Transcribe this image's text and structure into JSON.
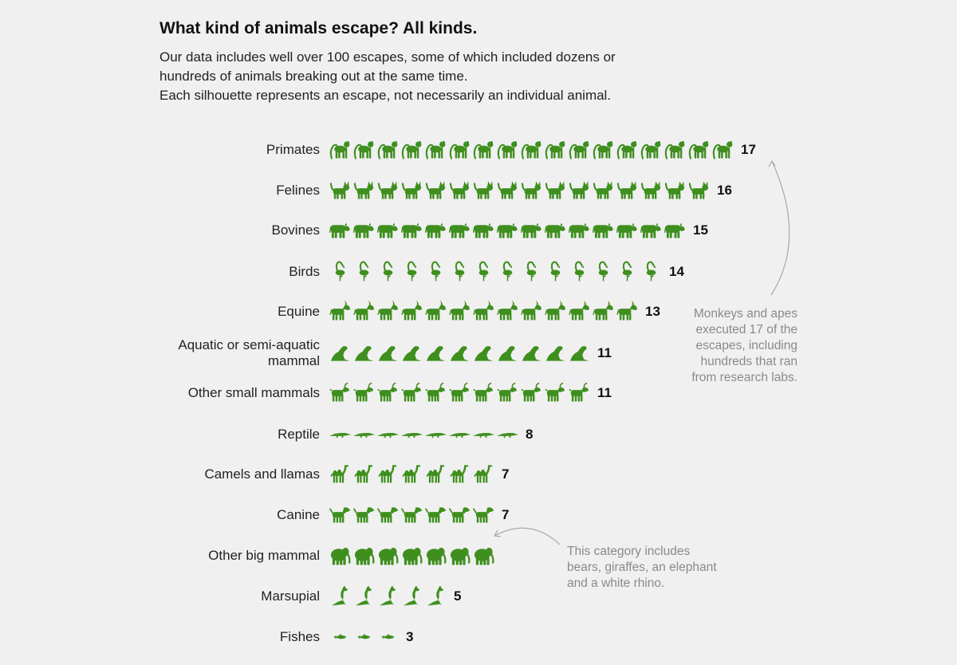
{
  "header": {
    "title": "What kind of animals escape? All kinds.",
    "subtitle_lines": [
      "Our data includes well over 100 escapes, some of which included dozens or",
      "hundreds of animals breaking out at the same time.",
      "Each silhouette represents an escape, not necessarily an individual animal."
    ]
  },
  "annotations": {
    "primates_note": [
      "Monkeys and apes",
      "executed 17 of the",
      "escapes, including",
      "hundreds that ran",
      "from research labs."
    ],
    "big_mammal_note": [
      "This category includes",
      "bears, giraffes, an elephant",
      "and a white rhino."
    ]
  },
  "colors": {
    "icon": "#3f8f1f",
    "background": "#f0f0f0",
    "annotation": "#8a8a8a"
  },
  "chart_data": {
    "type": "pictogram",
    "title": "What kind of animals escape? All kinds.",
    "unit": "escapes",
    "categories": [
      {
        "label": [
          "Primates"
        ],
        "value": 17,
        "icon": "monkey-icon"
      },
      {
        "label": [
          "Felines"
        ],
        "value": 16,
        "icon": "cat-icon"
      },
      {
        "label": [
          "Bovines"
        ],
        "value": 15,
        "icon": "cow-icon"
      },
      {
        "label": [
          "Birds"
        ],
        "value": 14,
        "icon": "flamingo-icon"
      },
      {
        "label": [
          "Equine"
        ],
        "value": 13,
        "icon": "donkey-icon"
      },
      {
        "label": [
          "Aquatic or semi-aquatic",
          "mammal"
        ],
        "value": 11,
        "icon": "seal-icon"
      },
      {
        "label": [
          "Other small mammals"
        ],
        "value": 11,
        "icon": "goat-icon"
      },
      {
        "label": [
          "Reptile"
        ],
        "value": 8,
        "icon": "crocodile-icon"
      },
      {
        "label": [
          "Camels and llamas"
        ],
        "value": 7,
        "icon": "camel-icon"
      },
      {
        "label": [
          "Canine"
        ],
        "value": 7,
        "icon": "dog-icon"
      },
      {
        "label": [
          "Other big mammal"
        ],
        "value": 7,
        "icon": "elephant-icon"
      },
      {
        "label": [
          "Marsupial"
        ],
        "value": 5,
        "icon": "kangaroo-icon"
      },
      {
        "label": [
          "Fishes"
        ],
        "value": 3,
        "icon": "fish-icon"
      }
    ],
    "count_labels": [
      "17",
      "16",
      "15",
      "14",
      "13",
      "11",
      "11",
      "8",
      "7",
      "7",
      "",
      "5",
      "3"
    ]
  }
}
